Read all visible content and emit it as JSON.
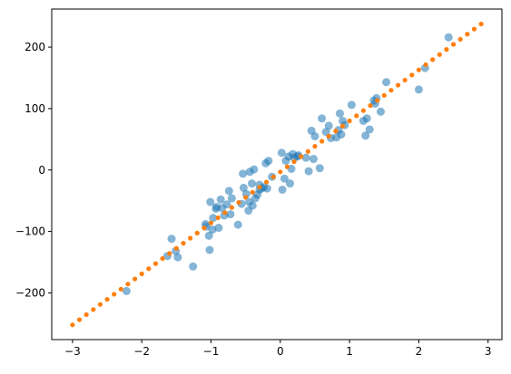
{
  "chart_data": {
    "type": "scatter",
    "title": "",
    "xlabel": "",
    "ylabel": "",
    "xlim": [
      -3.3,
      3.2
    ],
    "ylim": [
      -276,
      262
    ],
    "x_ticks": [
      -3,
      -2,
      -1,
      0,
      1,
      2,
      3
    ],
    "y_ticks": [
      -200,
      -100,
      0,
      100,
      200
    ],
    "x_tick_labels": [
      "−3",
      "−2",
      "−1",
      "0",
      "1",
      "2",
      "3"
    ],
    "y_tick_labels": [
      "−200",
      "−100",
      "0",
      "100",
      "200"
    ],
    "grid": false,
    "colors": {
      "scatter": "#1f77b4",
      "fit": "#ff7f0e",
      "axes": "#000000"
    },
    "series": [
      {
        "kind": "scatter",
        "points": [
          [
            -2.22,
            -197
          ],
          [
            -1.63,
            -140
          ],
          [
            -1.57,
            -112
          ],
          [
            -1.51,
            -132
          ],
          [
            -1.48,
            -142
          ],
          [
            -1.26,
            -157
          ],
          [
            -1.08,
            -88
          ],
          [
            -1.07,
            -92
          ],
          [
            -1.03,
            -107
          ],
          [
            -1.02,
            -130
          ],
          [
            -1.01,
            -52
          ],
          [
            -0.98,
            -97
          ],
          [
            -0.97,
            -78
          ],
          [
            -0.93,
            -63
          ],
          [
            -0.89,
            -94
          ],
          [
            -0.86,
            -48
          ],
          [
            -0.84,
            -62
          ],
          [
            -0.81,
            -74
          ],
          [
            -0.77,
            -56
          ],
          [
            -0.74,
            -34
          ],
          [
            -0.72,
            -72
          ],
          [
            -0.7,
            -46
          ],
          [
            -0.61,
            -89
          ],
          [
            -0.56,
            -55
          ],
          [
            -0.54,
            -6
          ],
          [
            -0.53,
            -29
          ],
          [
            -0.49,
            -39
          ],
          [
            -0.46,
            -66
          ],
          [
            -0.45,
            -52
          ],
          [
            -0.44,
            -3
          ],
          [
            -0.41,
            -22
          ],
          [
            -0.4,
            -58
          ],
          [
            -0.38,
            1
          ],
          [
            -0.36,
            -46
          ],
          [
            -0.33,
            -40
          ],
          [
            -0.3,
            -24
          ],
          [
            -0.27,
            -30
          ],
          [
            -0.24,
            -28
          ],
          [
            -0.21,
            11
          ],
          [
            -0.19,
            -30
          ],
          [
            -0.17,
            15
          ],
          [
            -0.12,
            -11
          ],
          [
            0.02,
            28
          ],
          [
            0.03,
            -32
          ],
          [
            0.06,
            -14
          ],
          [
            0.08,
            15
          ],
          [
            0.12,
            22
          ],
          [
            0.14,
            -22
          ],
          [
            0.16,
            2
          ],
          [
            0.18,
            26
          ],
          [
            0.2,
            20
          ],
          [
            0.25,
            22
          ],
          [
            0.37,
            20
          ],
          [
            0.41,
            -2
          ],
          [
            0.45,
            64
          ],
          [
            0.48,
            18
          ],
          [
            0.5,
            55
          ],
          [
            0.57,
            3
          ],
          [
            0.6,
            84
          ],
          [
            0.66,
            62
          ],
          [
            0.7,
            72
          ],
          [
            0.73,
            52
          ],
          [
            0.81,
            53
          ],
          [
            0.86,
            92
          ],
          [
            0.88,
            58
          ],
          [
            0.9,
            80
          ],
          [
            0.93,
            73
          ],
          [
            1.03,
            106
          ],
          [
            1.2,
            80
          ],
          [
            1.23,
            56
          ],
          [
            1.25,
            84
          ],
          [
            1.29,
            66
          ],
          [
            1.35,
            113
          ],
          [
            1.37,
            108
          ],
          [
            1.39,
            117
          ],
          [
            1.45,
            95
          ],
          [
            1.53,
            143
          ],
          [
            2.0,
            131
          ],
          [
            2.09,
            166
          ],
          [
            2.43,
            216
          ],
          [
            0.26,
            24
          ],
          [
            -0.3,
            -32
          ],
          [
            0.84,
            65
          ],
          [
            -0.92,
            -60
          ]
        ]
      },
      {
        "kind": "fit-dots",
        "x_start": -3.0,
        "x_end": 2.9,
        "step": 0.1,
        "slope": 83.0,
        "intercept": -3.0
      }
    ]
  }
}
